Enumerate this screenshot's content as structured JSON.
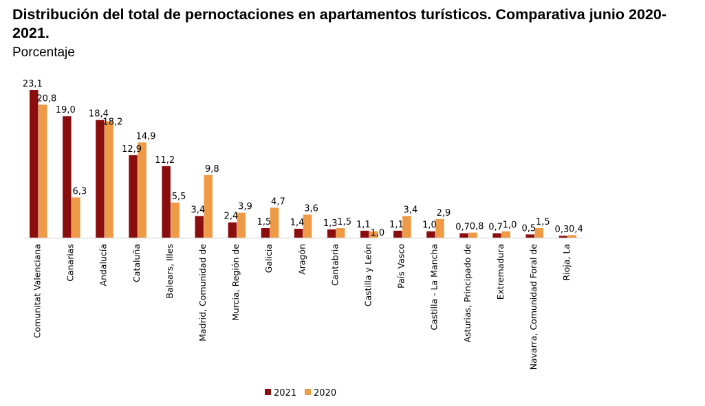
{
  "chart_data": {
    "type": "bar",
    "title": "Distribución del total de pernoctaciones en apartamentos turísticos. Comparativa junio 2020-2021.",
    "subtitle": "Porcentaje",
    "xlabel": "",
    "ylabel": "",
    "ylim": [
      0,
      23.1
    ],
    "grid": false,
    "legend_position": "bottom",
    "categories": [
      "Comunitat Valenciana",
      "Canarias",
      "Andalucía",
      "Cataluña",
      "Balears, Illes",
      "Madrid, Comunidad de",
      "Murcia, Región de",
      "Galicia",
      "Aragón",
      "Cantabria",
      "Castilla y León",
      "País Vasco",
      "Castilla  - La Mancha",
      "Asturias, Principado de",
      "Extremadura",
      "Navarra, Comunidad Foral de",
      "Rioja, La"
    ],
    "series": [
      {
        "name": "2021",
        "color": "#8B0E0E",
        "values": [
          23.1,
          19.0,
          18.4,
          12.9,
          11.2,
          3.4,
          2.4,
          1.5,
          1.4,
          1.3,
          1.1,
          1.1,
          1.0,
          0.7,
          0.7,
          0.5,
          0.3
        ],
        "labels": [
          "23,1",
          "19,0",
          "18,4",
          "12,9",
          "11,2",
          "3,4",
          "2,4",
          "1,5",
          "1,4",
          "1,3",
          "1,1",
          "1,1",
          "1,0",
          "0,7",
          "0,7",
          "0,5",
          "0,3"
        ]
      },
      {
        "name": "2020",
        "color": "#EE9A47",
        "values": [
          20.8,
          6.3,
          18.2,
          14.9,
          5.5,
          9.8,
          3.9,
          4.7,
          3.6,
          1.5,
          1.0,
          3.4,
          2.9,
          0.8,
          1.0,
          1.5,
          0.4
        ],
        "labels": [
          "20,8",
          "6,3",
          "18,2",
          "14,9",
          "5,5",
          "9,8",
          "3,9",
          "4,7",
          "3,6",
          "1,5",
          "1,0",
          "3,4",
          "2,9",
          "0,8",
          "1,0",
          "1,5",
          "0,4"
        ]
      }
    ]
  }
}
